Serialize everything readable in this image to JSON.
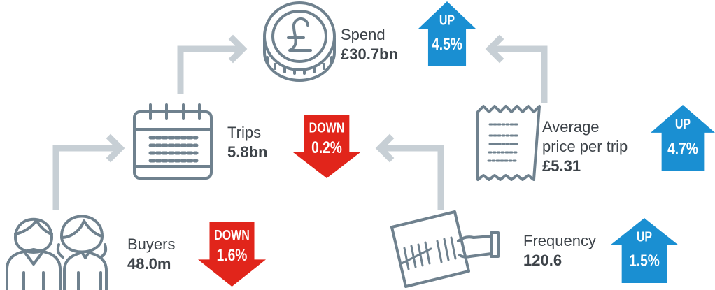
{
  "nodes": [
    {
      "label_lines": [
        "Spend"
      ],
      "value": "£30.7bn",
      "change": {
        "direction": "UP",
        "amount": "4.5%"
      }
    },
    {
      "label_lines": [
        "Trips"
      ],
      "value": "5.8bn",
      "change": {
        "direction": "DOWN",
        "amount": "0.2%"
      }
    },
    {
      "label_lines": [
        "Buyers"
      ],
      "value": "48.0m",
      "change": {
        "direction": "DOWN",
        "amount": "1.6%"
      }
    },
    {
      "label_lines": [
        "Average",
        "price per trip"
      ],
      "value": "£5.31",
      "change": {
        "direction": "UP",
        "amount": "4.7%"
      }
    },
    {
      "label_lines": [
        "Frequency"
      ],
      "value": "120.6",
      "change": {
        "direction": "UP",
        "amount": "1.5%"
      }
    }
  ]
}
